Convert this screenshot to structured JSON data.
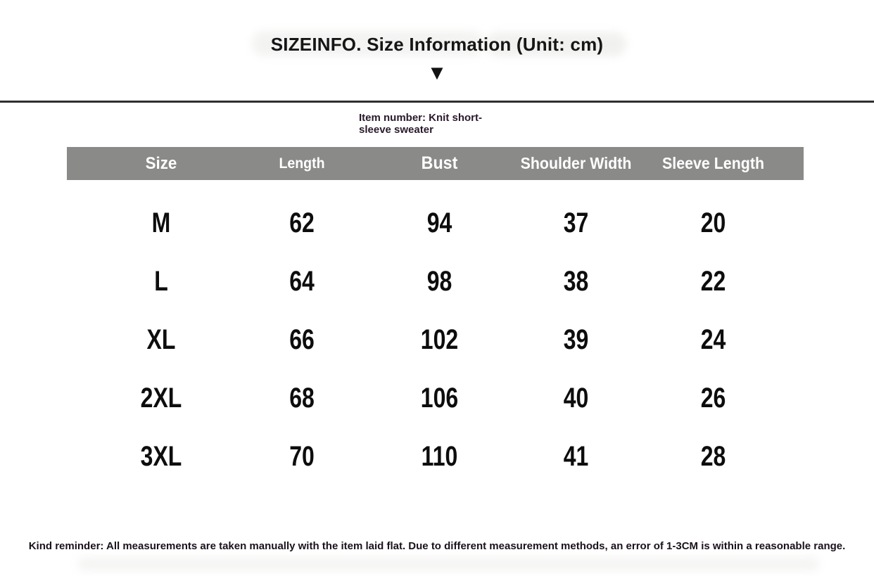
{
  "title": "SIZEINFO. Size Information (Unit: cm)",
  "down_arrow_icon": "▼",
  "item_number": "Item number: Knit short-sleeve sweater",
  "reminder": "Kind reminder: All measurements are taken manually with the item laid flat. Due to different measurement methods, an error of 1-3CM is within a reasonable range.",
  "colors": {
    "header_bg": "#8a8a88",
    "header_text": "#ffffff",
    "body_text": "#0d0d0d",
    "divider": "#2f2f2f"
  },
  "chart_data": {
    "type": "table",
    "title": "SIZEINFO. Size Information (Unit: cm)",
    "unit": "cm",
    "columns": [
      "Size",
      "Length",
      "Bust",
      "Shoulder Width",
      "Sleeve Length"
    ],
    "rows": [
      [
        "M",
        62,
        94,
        37,
        20
      ],
      [
        "L",
        64,
        98,
        38,
        22
      ],
      [
        "XL",
        66,
        102,
        39,
        24
      ],
      [
        "2XL",
        68,
        106,
        40,
        26
      ],
      [
        "3XL",
        70,
        110,
        41,
        28
      ]
    ]
  }
}
